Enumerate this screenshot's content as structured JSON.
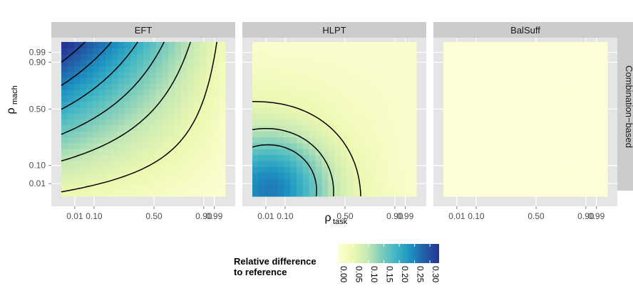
{
  "chart_data": {
    "type": "heatmap",
    "facet_row_label": "Combination−based",
    "xlabel_main": "ρ",
    "xlabel_sub": "task",
    "ylabel_main": "ρ",
    "ylabel_sub": "mach",
    "x_ticks": [
      "0.01",
      "0.10",
      "0.50",
      "0.90",
      "0.99"
    ],
    "y_ticks": [
      "0.01",
      "0.10",
      "0.50",
      "0.90",
      "0.99"
    ],
    "tick_positions": [
      0.01,
      0.1,
      0.5,
      0.9,
      0.99
    ],
    "panels": [
      {
        "title": "EFT",
        "value_range": [
          0.02,
          0.33
        ],
        "description": "difference highest at high rho_mach / low rho_task, lowest at high rho_task / low rho_mach",
        "contour_levels": [
          0.05,
          0.1,
          0.15,
          0.2,
          0.25,
          0.3
        ]
      },
      {
        "title": "HLPT",
        "value_range": [
          0.02,
          0.2
        ],
        "description": "difference peaks near low rho_task and low rho_mach",
        "contour_levels": [
          0.05,
          0.1,
          0.15
        ]
      },
      {
        "title": "BalSuff",
        "value_range": [
          0.0,
          0.01
        ],
        "description": "difference near zero everywhere",
        "contour_levels": []
      }
    ],
    "legend": {
      "title_line1": "Relative difference",
      "title_line2": "to reference",
      "breaks": [
        "0.00",
        "0.05",
        "0.10",
        "0.15",
        "0.20",
        "0.25",
        "0.30"
      ],
      "break_values": [
        0.0,
        0.05,
        0.1,
        0.15,
        0.2,
        0.25,
        0.3
      ],
      "max": 0.33,
      "colors": [
        "#ffffd9",
        "#edf8b1",
        "#c7e9b4",
        "#7fcdbb",
        "#41b6c4",
        "#1d91c0",
        "#225ea8",
        "#253494"
      ],
      "placement": "bottom"
    }
  }
}
